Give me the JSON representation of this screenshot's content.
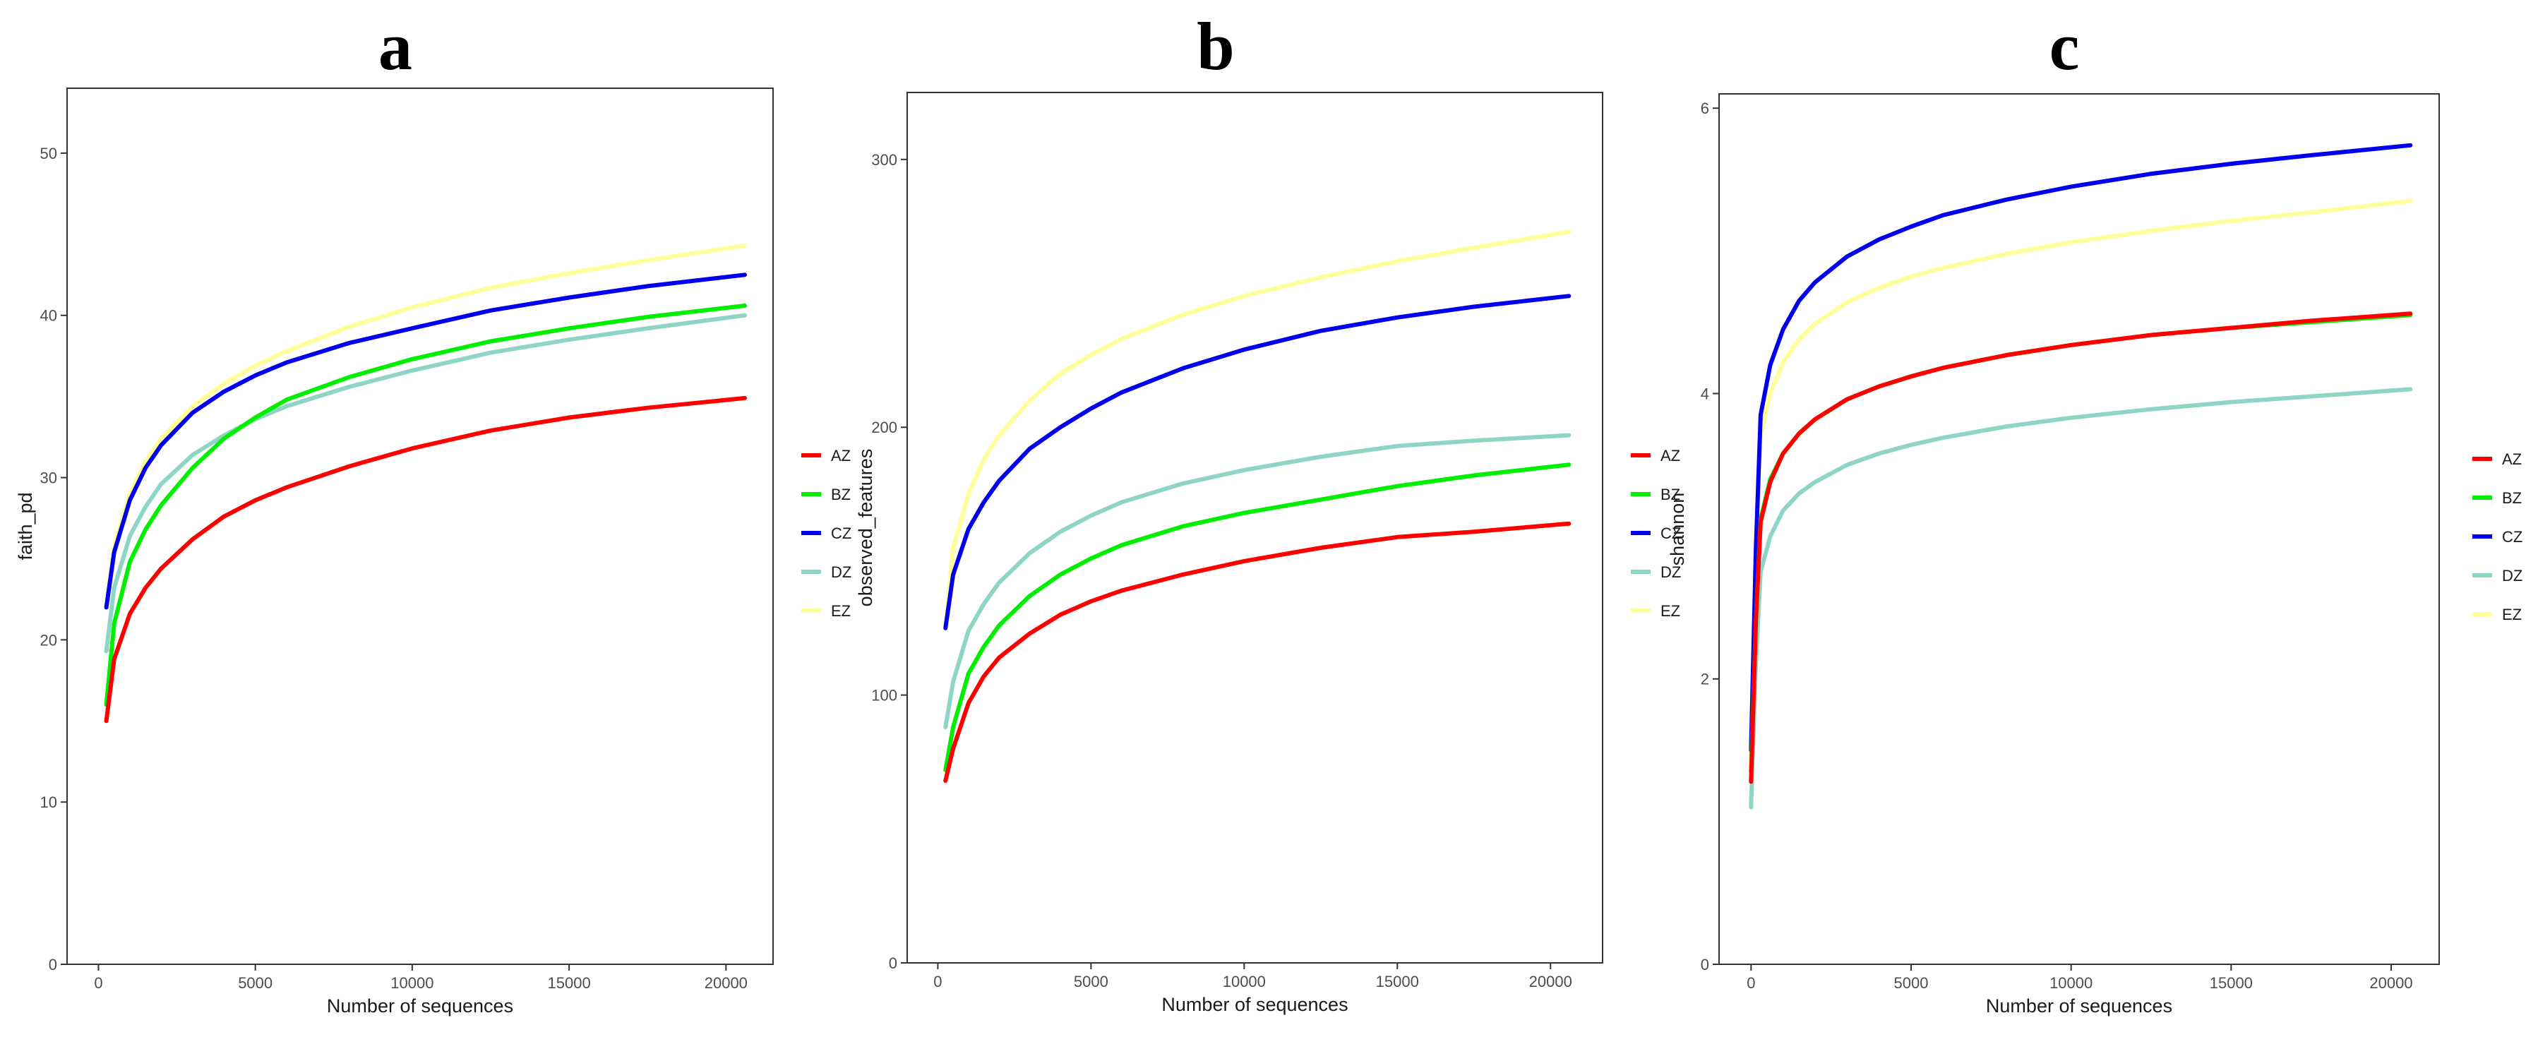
{
  "chart_data": [
    {
      "type": "line",
      "panel_label": "a",
      "xlabel": "Number of sequences",
      "ylabel": "faith_pd",
      "xlim": [
        -1000,
        21500
      ],
      "ylim": [
        0,
        54
      ],
      "x_ticks": [
        0,
        5000,
        10000,
        15000,
        20000
      ],
      "y_ticks": [
        0,
        10,
        20,
        30,
        40,
        50
      ],
      "grid": false,
      "legend_position": "right",
      "series": [
        {
          "name": "AZ",
          "color": "#ff0000",
          "x": [
            250,
            500,
            1000,
            1500,
            2000,
            3000,
            4000,
            5000,
            6000,
            8000,
            10000,
            12500,
            15000,
            17500,
            20600
          ],
          "y": [
            15.0,
            18.8,
            21.6,
            23.2,
            24.4,
            26.2,
            27.6,
            28.6,
            29.4,
            30.7,
            31.8,
            32.9,
            33.7,
            34.3,
            34.9
          ]
        },
        {
          "name": "BZ",
          "color": "#00ee00",
          "x": [
            250,
            500,
            1000,
            1500,
            2000,
            3000,
            4000,
            5000,
            6000,
            8000,
            10000,
            12500,
            15000,
            17500,
            20600
          ],
          "y": [
            16.0,
            21.0,
            24.8,
            26.8,
            28.3,
            30.6,
            32.4,
            33.7,
            34.8,
            36.2,
            37.3,
            38.4,
            39.2,
            39.9,
            40.6
          ]
        },
        {
          "name": "CZ",
          "color": "#0000ee",
          "x": [
            250,
            500,
            1000,
            1500,
            2000,
            3000,
            4000,
            5000,
            6000,
            8000,
            10000,
            12500,
            15000,
            17500,
            20600
          ],
          "y": [
            22.0,
            25.4,
            28.6,
            30.6,
            32.0,
            34.0,
            35.3,
            36.3,
            37.1,
            38.3,
            39.2,
            40.3,
            41.1,
            41.8,
            42.5
          ]
        },
        {
          "name": "DZ",
          "color": "#8fd5c5",
          "x": [
            250,
            500,
            1000,
            1500,
            2000,
            3000,
            4000,
            5000,
            6000,
            8000,
            10000,
            12500,
            15000,
            17500,
            20600
          ],
          "y": [
            19.3,
            23.2,
            26.4,
            28.2,
            29.6,
            31.4,
            32.6,
            33.6,
            34.4,
            35.6,
            36.6,
            37.7,
            38.5,
            39.2,
            40.0
          ]
        },
        {
          "name": "EZ",
          "color": "#ffff99",
          "x": [
            250,
            500,
            1000,
            1500,
            2000,
            3000,
            4000,
            5000,
            6000,
            8000,
            10000,
            12500,
            15000,
            17500,
            20600
          ],
          "y": [
            22.0,
            25.8,
            29.0,
            31.0,
            32.4,
            34.4,
            35.8,
            36.9,
            37.8,
            39.3,
            40.5,
            41.7,
            42.6,
            43.4,
            44.3
          ]
        }
      ]
    },
    {
      "type": "line",
      "panel_label": "b",
      "xlabel": "Number of sequences",
      "ylabel": "observed_features",
      "xlim": [
        -1000,
        21700
      ],
      "ylim": [
        0,
        325
      ],
      "x_ticks": [
        0,
        5000,
        10000,
        15000,
        20000
      ],
      "y_ticks": [
        0,
        100,
        200,
        300
      ],
      "grid": false,
      "legend_position": "right",
      "series": [
        {
          "name": "AZ",
          "color": "#ff0000",
          "x": [
            250,
            500,
            1000,
            1500,
            2000,
            3000,
            4000,
            5000,
            6000,
            8000,
            10000,
            12500,
            15000,
            17500,
            20600
          ],
          "y": [
            68,
            80,
            97,
            107,
            114,
            123,
            130,
            135,
            139,
            145,
            150,
            155,
            159,
            161,
            164
          ]
        },
        {
          "name": "BZ",
          "color": "#00ee00",
          "x": [
            250,
            500,
            1000,
            1500,
            2000,
            3000,
            4000,
            5000,
            6000,
            8000,
            10000,
            12500,
            15000,
            17500,
            20600
          ],
          "y": [
            72,
            88,
            108,
            118,
            126,
            137,
            145,
            151,
            156,
            163,
            168,
            173,
            178,
            182,
            186
          ]
        },
        {
          "name": "CZ",
          "color": "#0000ee",
          "x": [
            250,
            500,
            1000,
            1500,
            2000,
            3000,
            4000,
            5000,
            6000,
            8000,
            10000,
            12500,
            15000,
            17500,
            20600
          ],
          "y": [
            125,
            145,
            162,
            172,
            180,
            192,
            200,
            207,
            213,
            222,
            229,
            236,
            241,
            245,
            249
          ]
        },
        {
          "name": "DZ",
          "color": "#8fd5c5",
          "x": [
            250,
            500,
            1000,
            1500,
            2000,
            3000,
            4000,
            5000,
            6000,
            8000,
            10000,
            12500,
            15000,
            17500,
            20600
          ],
          "y": [
            88,
            105,
            124,
            134,
            142,
            153,
            161,
            167,
            172,
            179,
            184,
            189,
            193,
            195,
            197
          ]
        },
        {
          "name": "EZ",
          "color": "#ffff99",
          "x": [
            250,
            500,
            1000,
            1500,
            2000,
            3000,
            4000,
            5000,
            6000,
            8000,
            10000,
            12500,
            15000,
            17500,
            20600
          ],
          "y": [
            125,
            155,
            175,
            188,
            197,
            210,
            220,
            227,
            233,
            242,
            249,
            256,
            262,
            267,
            273
          ]
        }
      ]
    },
    {
      "type": "line",
      "panel_label": "c",
      "xlabel": "Number of sequences",
      "ylabel": "shannon",
      "xlim": [
        -1000,
        21500
      ],
      "ylim": [
        0,
        6.1
      ],
      "x_ticks": [
        0,
        5000,
        10000,
        15000,
        20000
      ],
      "y_ticks": [
        0,
        2,
        4,
        6
      ],
      "grid": false,
      "legend_position": "right",
      "series": [
        {
          "name": "AZ",
          "color": "#ff0000",
          "x": [
            0,
            150,
            300,
            600,
            1000,
            1500,
            2000,
            3000,
            4000,
            5000,
            6000,
            8000,
            10000,
            12500,
            15000,
            17500,
            20600
          ],
          "y": [
            1.28,
            2.4,
            3.1,
            3.38,
            3.58,
            3.72,
            3.82,
            3.96,
            4.05,
            4.12,
            4.18,
            4.27,
            4.34,
            4.41,
            4.46,
            4.51,
            4.56
          ]
        },
        {
          "name": "BZ",
          "color": "#00ee00",
          "x": [
            0,
            150,
            300,
            600,
            1000,
            1500,
            2000,
            3000,
            4000,
            5000,
            6000,
            8000,
            10000,
            12500,
            15000,
            17500,
            20600
          ],
          "y": [
            1.35,
            2.4,
            3.12,
            3.4,
            3.58,
            3.72,
            3.82,
            3.96,
            4.05,
            4.12,
            4.18,
            4.27,
            4.34,
            4.41,
            4.46,
            4.5,
            4.55
          ]
        },
        {
          "name": "CZ",
          "color": "#0000ee",
          "x": [
            0,
            150,
            300,
            600,
            1000,
            1500,
            2000,
            3000,
            4000,
            5000,
            6000,
            8000,
            10000,
            12500,
            15000,
            17500,
            20600
          ],
          "y": [
            1.5,
            2.9,
            3.85,
            4.2,
            4.45,
            4.65,
            4.78,
            4.96,
            5.08,
            5.17,
            5.25,
            5.36,
            5.45,
            5.54,
            5.61,
            5.67,
            5.74
          ]
        },
        {
          "name": "DZ",
          "color": "#8fd5c5",
          "x": [
            0,
            150,
            300,
            600,
            1000,
            1500,
            2000,
            3000,
            4000,
            5000,
            6000,
            8000,
            10000,
            12500,
            15000,
            17500,
            20600
          ],
          "y": [
            1.1,
            2.1,
            2.75,
            3.0,
            3.18,
            3.3,
            3.38,
            3.5,
            3.58,
            3.64,
            3.69,
            3.77,
            3.83,
            3.89,
            3.94,
            3.98,
            4.03
          ]
        },
        {
          "name": "EZ",
          "color": "#ffff99",
          "x": [
            0,
            150,
            300,
            600,
            1000,
            1500,
            2000,
            3000,
            4000,
            5000,
            6000,
            8000,
            10000,
            12500,
            15000,
            17500,
            20600
          ],
          "y": [
            1.5,
            2.9,
            3.7,
            4.0,
            4.22,
            4.38,
            4.49,
            4.64,
            4.74,
            4.82,
            4.88,
            4.98,
            5.06,
            5.14,
            5.21,
            5.27,
            5.35
          ]
        }
      ]
    }
  ]
}
